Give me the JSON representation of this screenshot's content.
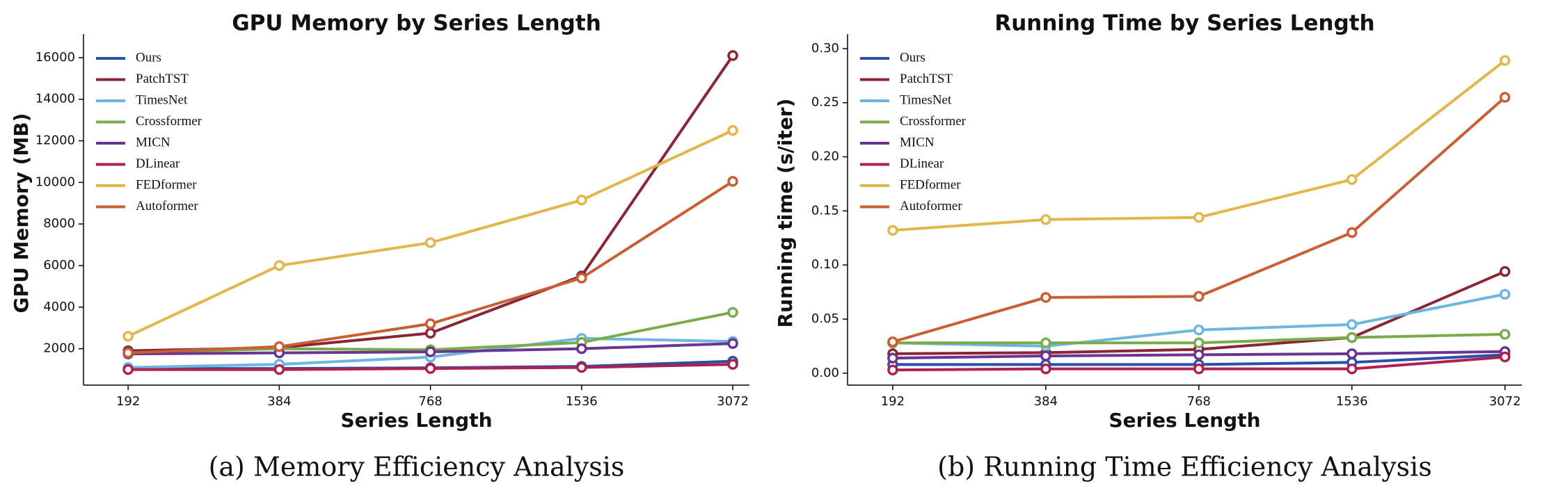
{
  "chart_data": [
    {
      "type": "line",
      "title": "GPU Memory by Series Length",
      "xlabel": "Series Length",
      "ylabel": "GPU Memory (MB)",
      "caption": "(a) Memory Efficiency Analysis",
      "legend": "upper left",
      "categories": [
        "192",
        "384",
        "768",
        "1536",
        "3072"
      ],
      "ylim": [
        250,
        16800
      ],
      "yticks": [
        2000,
        4000,
        6000,
        8000,
        10000,
        12000,
        14000,
        16000
      ],
      "series": [
        {
          "name": "Ours",
          "color": "#2a4fa8",
          "values": [
            1050,
            1050,
            1080,
            1150,
            1400
          ]
        },
        {
          "name": "PatchTST",
          "color": "#8b2535",
          "values": [
            1900,
            2050,
            2750,
            5500,
            16100
          ]
        },
        {
          "name": "TimesNet",
          "color": "#6cb6e0",
          "values": [
            1100,
            1250,
            1600,
            2500,
            2350
          ]
        },
        {
          "name": "Crossformer",
          "color": "#7aab4a",
          "values": [
            1800,
            2000,
            1950,
            2300,
            3750
          ]
        },
        {
          "name": "MICN",
          "color": "#6a3490",
          "values": [
            1750,
            1800,
            1850,
            2000,
            2250
          ]
        },
        {
          "name": "DLinear",
          "color": "#b0204e",
          "values": [
            1000,
            1000,
            1050,
            1100,
            1250
          ]
        },
        {
          "name": "FEDformer",
          "color": "#e2b64a",
          "values": [
            2600,
            6000,
            7100,
            9150,
            12500
          ]
        },
        {
          "name": "Autoformer",
          "color": "#c95e33",
          "values": [
            1800,
            2100,
            3200,
            5400,
            10050
          ]
        }
      ]
    },
    {
      "type": "line",
      "title": "Running Time by Series Length",
      "xlabel": "Series Length",
      "ylabel": "Running time (s/iter)",
      "caption": "(b) Running Time Efficiency Analysis",
      "legend": "upper left",
      "categories": [
        "192",
        "384",
        "768",
        "1536",
        "3072"
      ],
      "ylim": [
        -0.011,
        0.307
      ],
      "yticks": [
        {
          "value": 0,
          "label": "0.00"
        },
        {
          "value": 0.05,
          "label": "0.05"
        },
        {
          "value": 0.1,
          "label": "0.10"
        },
        {
          "value": 0.15,
          "label": "0.15"
        },
        {
          "value": 0.2,
          "label": "0.20"
        },
        {
          "value": 0.25,
          "label": "0.25"
        },
        {
          "value": 0.3,
          "label": "0.30"
        }
      ],
      "series": [
        {
          "name": "Ours",
          "color": "#2a4fa8",
          "values": [
            0.008,
            0.008,
            0.008,
            0.01,
            0.017
          ]
        },
        {
          "name": "PatchTST",
          "color": "#8b2535",
          "values": [
            0.018,
            0.019,
            0.022,
            0.033,
            0.094
          ]
        },
        {
          "name": "TimesNet",
          "color": "#6cb6e0",
          "values": [
            0.028,
            0.025,
            0.04,
            0.045,
            0.073
          ]
        },
        {
          "name": "Crossformer",
          "color": "#7aab4a",
          "values": [
            0.028,
            0.028,
            0.028,
            0.033,
            0.036
          ]
        },
        {
          "name": "MICN",
          "color": "#6a3490",
          "values": [
            0.014,
            0.016,
            0.017,
            0.018,
            0.02
          ]
        },
        {
          "name": "DLinear",
          "color": "#b0204e",
          "values": [
            0.003,
            0.004,
            0.004,
            0.004,
            0.015
          ]
        },
        {
          "name": "FEDformer",
          "color": "#e2b64a",
          "values": [
            0.132,
            0.142,
            0.144,
            0.179,
            0.289
          ]
        },
        {
          "name": "Autoformer",
          "color": "#c95e33",
          "values": [
            0.029,
            0.07,
            0.071,
            0.13,
            0.255
          ]
        }
      ]
    }
  ]
}
